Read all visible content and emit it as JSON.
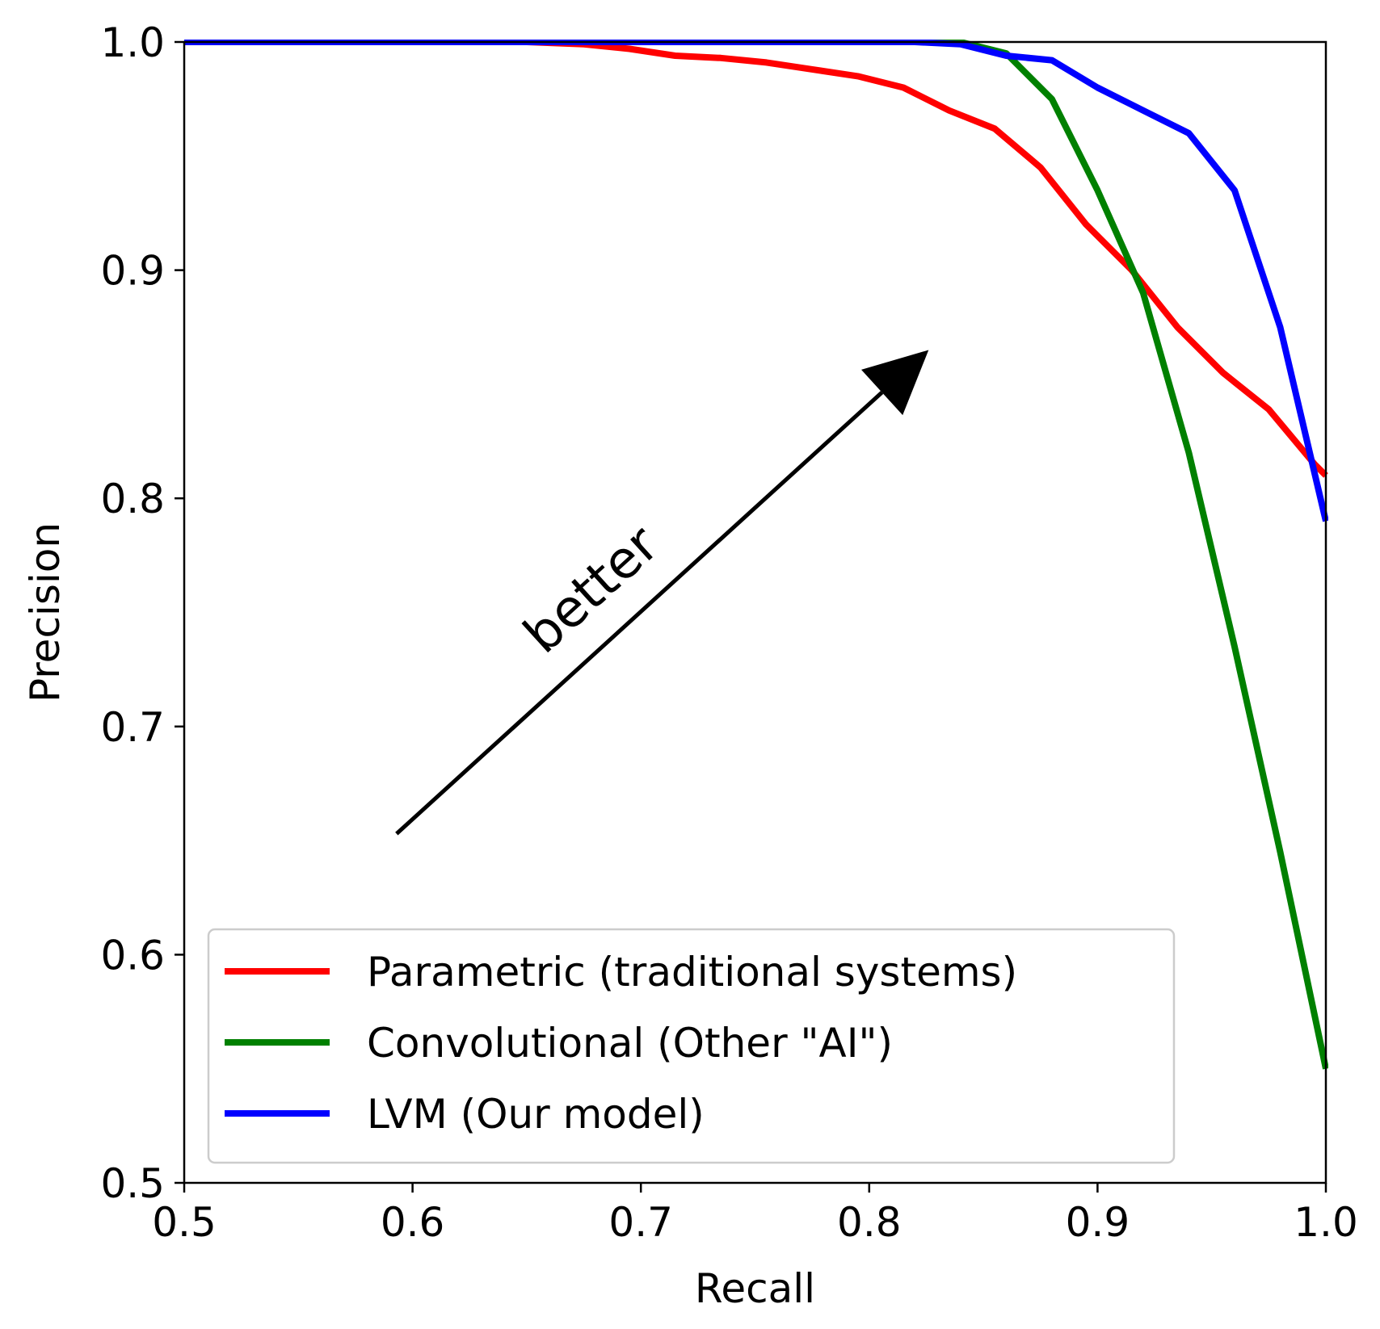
{
  "chart_data": {
    "type": "line",
    "title": "",
    "xlabel": "Recall",
    "ylabel": "Precision",
    "xlim": [
      0.5,
      1.0
    ],
    "ylim": [
      0.5,
      1.0
    ],
    "xticks": [
      "0.5",
      "0.6",
      "0.7",
      "0.8",
      "0.9",
      "1.0"
    ],
    "yticks": [
      "0.5",
      "0.6",
      "0.7",
      "0.8",
      "0.9",
      "1.0"
    ],
    "grid": false,
    "legend_position": "lower-left",
    "series": [
      {
        "name": "Parametric (traditional systems)",
        "color": "#ff0000",
        "x": [
          0.5,
          0.55,
          0.6,
          0.65,
          0.675,
          0.695,
          0.715,
          0.735,
          0.755,
          0.775,
          0.795,
          0.815,
          0.835,
          0.855,
          0.875,
          0.895,
          0.915,
          0.935,
          0.955,
          0.975,
          0.995,
          1.0
        ],
        "y": [
          1.0,
          1.0,
          1.0,
          1.0,
          0.999,
          0.997,
          0.994,
          0.993,
          0.991,
          0.988,
          0.985,
          0.98,
          0.97,
          0.962,
          0.945,
          0.92,
          0.9,
          0.875,
          0.855,
          0.839,
          0.815,
          0.81
        ]
      },
      {
        "name": "Convolutional (Other \"AI\")",
        "color": "#008000",
        "x": [
          0.5,
          0.6,
          0.7,
          0.8,
          0.84,
          0.86,
          0.88,
          0.9,
          0.92,
          0.94,
          0.96,
          0.98,
          1.0
        ],
        "y": [
          1.0,
          1.0,
          1.0,
          1.0,
          1.0,
          0.995,
          0.975,
          0.935,
          0.89,
          0.82,
          0.735,
          0.645,
          0.55
        ]
      },
      {
        "name": "LVM (Our model)",
        "color": "#0000ff",
        "x": [
          0.5,
          0.6,
          0.7,
          0.8,
          0.82,
          0.84,
          0.86,
          0.88,
          0.9,
          0.92,
          0.94,
          0.96,
          0.98,
          1.0
        ],
        "y": [
          1.0,
          1.0,
          1.0,
          1.0,
          1.0,
          0.999,
          0.994,
          0.992,
          0.98,
          0.97,
          0.96,
          0.935,
          0.875,
          0.79
        ]
      }
    ],
    "annotation": {
      "text": "better",
      "arrow_from": [
        0.593,
        0.653
      ],
      "arrow_to": [
        0.826,
        0.865
      ]
    }
  }
}
